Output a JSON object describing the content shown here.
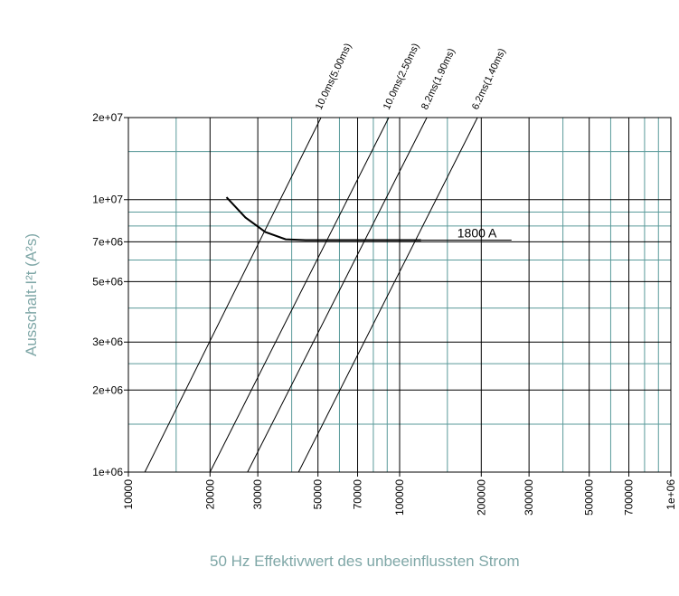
{
  "chart_data": {
    "type": "line",
    "xlabel": "50 Hz Effektivwert des unbeeinflussten Strom",
    "ylabel": "Ausschalt-I²t (A²s)",
    "xscale": "log",
    "yscale": "log",
    "xlim": [
      10000,
      1000000
    ],
    "ylim": [
      1000000,
      20000000
    ],
    "xticks": [
      10000,
      20000,
      30000,
      50000,
      70000,
      100000,
      200000,
      300000,
      500000,
      700000,
      {
        "value": 1000000,
        "label": "1e+06"
      }
    ],
    "yticks": [
      {
        "value": 1000000,
        "label": "1e+06"
      },
      {
        "value": 2000000,
        "label": "2e+06"
      },
      {
        "value": 3000000,
        "label": "3e+06"
      },
      {
        "value": 5000000,
        "label": "5e+06"
      },
      {
        "value": 7000000,
        "label": "7e+06"
      },
      {
        "value": 10000000,
        "label": "1e+07"
      },
      {
        "value": 20000000,
        "label": "2e+07"
      }
    ],
    "xminorticks": [
      15000,
      40000,
      60000,
      80000,
      90000,
      150000,
      400000,
      600000,
      800000,
      900000
    ],
    "yminorticks": [
      1500000,
      2500000,
      4000000,
      6000000,
      8000000,
      9000000,
      15000000
    ],
    "grid": true,
    "major_grid_color": "#000000",
    "minor_grid_color": "#5a9a9a",
    "series": [
      {
        "name": "1800 A",
        "color": "#000000",
        "x": [
          23000,
          27000,
          32000,
          38000,
          45000,
          120000
        ],
        "values": [
          10200000,
          8600000,
          7600000,
          7150000,
          7100000,
          7100000
        ]
      },
      {
        "name": "10.0ms(5.00ms)",
        "color": "#000000",
        "x": [
          11500,
          51300
        ],
        "values": [
          1000000,
          20000000
        ]
      },
      {
        "name": "10.0ms(2.50ms)",
        "color": "#000000",
        "x": [
          20000,
          91200
        ],
        "values": [
          1000000,
          20000000
        ]
      },
      {
        "name": "8.2ms(1.90ms)",
        "color": "#000000",
        "x": [
          27500,
          126000
        ],
        "values": [
          1000000,
          20000000
        ]
      },
      {
        "name": "6.2ms(1.40ms)",
        "color": "#000000",
        "x": [
          42400,
          193600
        ],
        "values": [
          1000000,
          20000000
        ]
      }
    ]
  }
}
